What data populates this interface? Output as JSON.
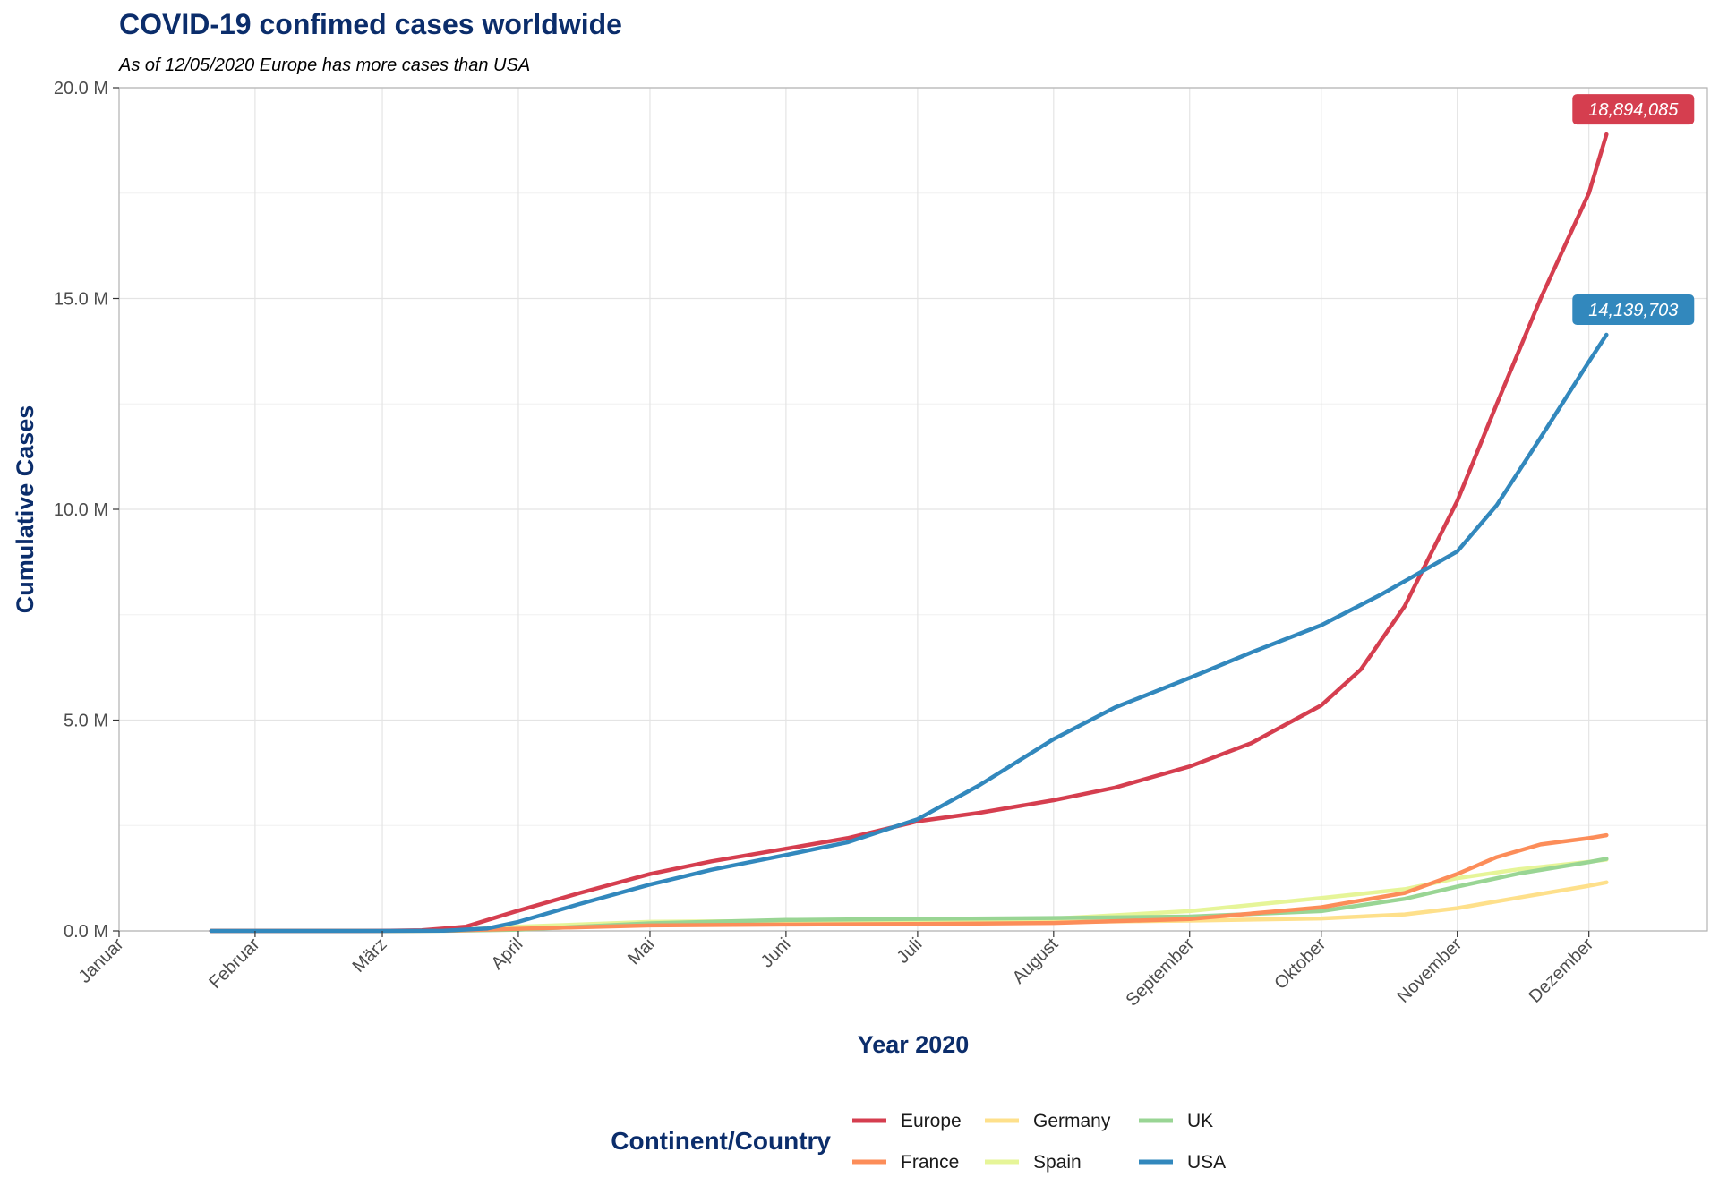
{
  "chart_data": {
    "type": "line",
    "title": "COVID-19 confimed cases worldwide",
    "subtitle": "As of 12/05/2020 Europe has more cases than USA",
    "xlabel": "Year 2020",
    "ylabel": "Cumulative Cases",
    "x_ticks": [
      "Januar",
      "Februar",
      "März",
      "April",
      "Mai",
      "Juni",
      "Juli",
      "August",
      "September",
      "Oktober",
      "November",
      "Dezember"
    ],
    "xlim": [
      "2020-01-01",
      "2020-12-28"
    ],
    "y_ticks": [
      0,
      5000000,
      10000000,
      15000000,
      20000000
    ],
    "y_tick_labels": [
      "0.0 M",
      "5.0 M",
      "10.0 M",
      "15.0 M",
      "20.0 M"
    ],
    "ylim": [
      0,
      20000000
    ],
    "grid": true,
    "legend": {
      "title": "Continent/Country",
      "position": "bottom"
    },
    "series": [
      {
        "name": "Europe",
        "color": "#d53e4f",
        "points": [
          [
            "2020-01-22",
            0
          ],
          [
            "2020-02-25",
            0
          ],
          [
            "2020-03-01",
            2000
          ],
          [
            "2020-03-10",
            15000
          ],
          [
            "2020-03-20",
            100000
          ],
          [
            "2020-03-31",
            450000
          ],
          [
            "2020-04-15",
            900000
          ],
          [
            "2020-05-01",
            1350000
          ],
          [
            "2020-05-15",
            1650000
          ],
          [
            "2020-06-01",
            1950000
          ],
          [
            "2020-06-15",
            2200000
          ],
          [
            "2020-07-01",
            2600000
          ],
          [
            "2020-07-15",
            2800000
          ],
          [
            "2020-08-01",
            3100000
          ],
          [
            "2020-08-15",
            3400000
          ],
          [
            "2020-09-01",
            3900000
          ],
          [
            "2020-09-15",
            4450000
          ],
          [
            "2020-10-01",
            5350000
          ],
          [
            "2020-10-10",
            6200000
          ],
          [
            "2020-10-20",
            7700000
          ],
          [
            "2020-11-01",
            10200000
          ],
          [
            "2020-11-10",
            12500000
          ],
          [
            "2020-11-20",
            15000000
          ],
          [
            "2020-12-01",
            17500000
          ],
          [
            "2020-12-05",
            18894085
          ]
        ],
        "end_label": "18,894,085"
      },
      {
        "name": "France",
        "color": "#fc8d59",
        "points": [
          [
            "2020-01-22",
            0
          ],
          [
            "2020-03-01",
            100
          ],
          [
            "2020-03-15",
            5000
          ],
          [
            "2020-04-01",
            50000
          ],
          [
            "2020-05-01",
            130000
          ],
          [
            "2020-06-01",
            150000
          ],
          [
            "2020-07-01",
            165000
          ],
          [
            "2020-08-01",
            190000
          ],
          [
            "2020-09-01",
            280000
          ],
          [
            "2020-10-01",
            560000
          ],
          [
            "2020-10-20",
            900000
          ],
          [
            "2020-11-01",
            1350000
          ],
          [
            "2020-11-10",
            1750000
          ],
          [
            "2020-11-20",
            2050000
          ],
          [
            "2020-12-01",
            2200000
          ],
          [
            "2020-12-05",
            2270000
          ]
        ]
      },
      {
        "name": "Germany",
        "color": "#fee08b",
        "points": [
          [
            "2020-01-22",
            0
          ],
          [
            "2020-03-01",
            100
          ],
          [
            "2020-03-15",
            6000
          ],
          [
            "2020-04-01",
            70000
          ],
          [
            "2020-05-01",
            160000
          ],
          [
            "2020-06-01",
            180000
          ],
          [
            "2020-07-01",
            195000
          ],
          [
            "2020-08-01",
            210000
          ],
          [
            "2020-09-01",
            245000
          ],
          [
            "2020-10-01",
            295000
          ],
          [
            "2020-10-20",
            390000
          ],
          [
            "2020-11-01",
            540000
          ],
          [
            "2020-11-15",
            790000
          ],
          [
            "2020-12-01",
            1070000
          ],
          [
            "2020-12-05",
            1150000
          ]
        ]
      },
      {
        "name": "Spain",
        "color": "#e6f598",
        "points": [
          [
            "2020-01-22",
            0
          ],
          [
            "2020-03-01",
            100
          ],
          [
            "2020-03-15",
            8000
          ],
          [
            "2020-04-01",
            100000
          ],
          [
            "2020-05-01",
            215000
          ],
          [
            "2020-06-01",
            240000
          ],
          [
            "2020-07-01",
            250000
          ],
          [
            "2020-08-01",
            290000
          ],
          [
            "2020-09-01",
            470000
          ],
          [
            "2020-10-01",
            780000
          ],
          [
            "2020-10-20",
            990000
          ],
          [
            "2020-11-01",
            1250000
          ],
          [
            "2020-11-15",
            1460000
          ],
          [
            "2020-12-01",
            1640000
          ],
          [
            "2020-12-05",
            1690000
          ]
        ]
      },
      {
        "name": "UK",
        "color": "#99d594",
        "points": [
          [
            "2020-01-22",
            0
          ],
          [
            "2020-03-01",
            50
          ],
          [
            "2020-03-15",
            1400
          ],
          [
            "2020-04-01",
            30000
          ],
          [
            "2020-05-01",
            180000
          ],
          [
            "2020-06-01",
            260000
          ],
          [
            "2020-07-01",
            285000
          ],
          [
            "2020-08-01",
            305000
          ],
          [
            "2020-09-01",
            340000
          ],
          [
            "2020-10-01",
            470000
          ],
          [
            "2020-10-20",
            760000
          ],
          [
            "2020-11-01",
            1050000
          ],
          [
            "2020-11-15",
            1360000
          ],
          [
            "2020-12-01",
            1630000
          ],
          [
            "2020-12-05",
            1710000
          ]
        ]
      },
      {
        "name": "USA",
        "color": "#3288bd",
        "points": [
          [
            "2020-01-22",
            1
          ],
          [
            "2020-03-01",
            70
          ],
          [
            "2020-03-15",
            3500
          ],
          [
            "2020-03-25",
            60000
          ],
          [
            "2020-04-01",
            215000
          ],
          [
            "2020-04-15",
            640000
          ],
          [
            "2020-05-01",
            1100000
          ],
          [
            "2020-05-15",
            1450000
          ],
          [
            "2020-06-01",
            1800000
          ],
          [
            "2020-06-15",
            2100000
          ],
          [
            "2020-07-01",
            2650000
          ],
          [
            "2020-07-15",
            3450000
          ],
          [
            "2020-08-01",
            4550000
          ],
          [
            "2020-08-15",
            5300000
          ],
          [
            "2020-09-01",
            6000000
          ],
          [
            "2020-09-15",
            6600000
          ],
          [
            "2020-10-01",
            7250000
          ],
          [
            "2020-10-15",
            8000000
          ],
          [
            "2020-11-01",
            9000000
          ],
          [
            "2020-11-10",
            10100000
          ],
          [
            "2020-11-20",
            11700000
          ],
          [
            "2020-12-01",
            13500000
          ],
          [
            "2020-12-05",
            14139703
          ]
        ],
        "end_label": "14,139,703"
      }
    ]
  }
}
